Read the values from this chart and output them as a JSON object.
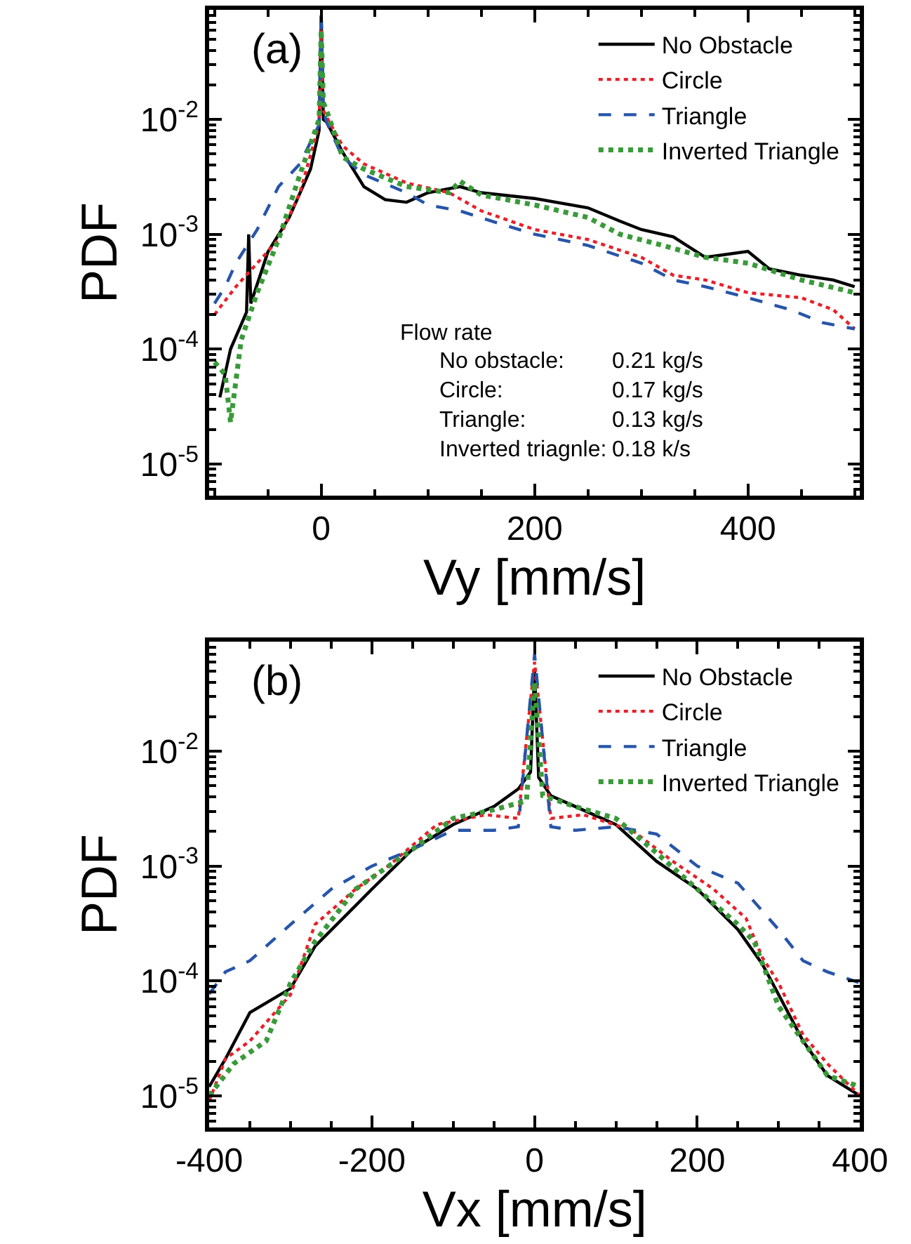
{
  "chart_data": [
    {
      "type": "line",
      "xlabel": "Vy [mm/s]",
      "ylabel": "PDF",
      "log": "y",
      "legend": "top right",
      "xlim": [
        -105,
        505
      ],
      "xticks": [
        0,
        200,
        400
      ],
      "ylim": [
        5.3e-06,
        0.09
      ],
      "yticks": [
        {
          "value": 0.01,
          "label": "10$^{-2}$"
        },
        {
          "value": 0.001,
          "label": "10$^{-3}$"
        },
        {
          "value": 0.0001,
          "label": "10$^{-4}$"
        },
        {
          "value": 1e-05,
          "label": "10$^{-5}$"
        }
      ],
      "annotations": [
        "(a)",
        "Flow rate",
        "No obstacle:",
        "0.21 kg/s",
        "Circle:",
        "0.17 kg/s",
        "Triangle:",
        "0.13 kg/s",
        "Inverted triagnle:",
        "0.18 k/s"
      ],
      "series": [
        {
          "name": "No Obstacle",
          "color": "#000000",
          "line_style": "solid",
          "x": [
            -95,
            -85,
            -70,
            -68,
            -66,
            -50,
            -30,
            -10,
            -2,
            0,
            2,
            5,
            20,
            40,
            60,
            80,
            100,
            130,
            150,
            200,
            250,
            280,
            300,
            330,
            360,
            400,
            420,
            450,
            480,
            500
          ],
          "values": [
            3.8e-05,
            0.0001,
            0.00021,
            0.001,
            0.00025,
            0.0007,
            0.0014,
            0.0037,
            0.008,
            0.08,
            0.01,
            0.0095,
            0.0052,
            0.0026,
            0.002,
            0.0019,
            0.0023,
            0.0026,
            0.0023,
            0.00205,
            0.0017,
            0.0013,
            0.0011,
            0.00095,
            0.00063,
            0.00071,
            0.0005,
            0.00044,
            0.0004,
            0.00035
          ]
        },
        {
          "name": "Circle",
          "color": "#e8202a",
          "line_style": "dotted",
          "x": [
            -100,
            -80,
            -60,
            -40,
            -20,
            -2,
            0,
            2,
            5,
            20,
            40,
            80,
            120,
            150,
            200,
            250,
            300,
            330,
            360,
            400,
            450,
            480,
            500
          ],
          "values": [
            0.0002,
            0.00035,
            0.00056,
            0.0009,
            0.0023,
            0.009,
            0.06,
            0.012,
            0.0105,
            0.0059,
            0.0041,
            0.0028,
            0.0023,
            0.0016,
            0.0011,
            0.0009,
            0.00063,
            0.00044,
            0.0004,
            0.00031,
            0.00028,
            0.00022,
            0.00015
          ]
        },
        {
          "name": "Triangle",
          "color": "#2755a8",
          "line_style": "dashed",
          "x": [
            -100,
            -90,
            -80,
            -60,
            -40,
            -20,
            -2,
            0,
            2,
            5,
            20,
            40,
            80,
            100,
            130,
            160,
            200,
            250,
            300,
            330,
            360,
            400,
            440,
            470,
            500
          ],
          "values": [
            0.00025,
            0.00035,
            0.00056,
            0.0011,
            0.0026,
            0.0041,
            0.009,
            0.09,
            0.012,
            0.0095,
            0.0047,
            0.0033,
            0.0023,
            0.0018,
            0.0016,
            0.0013,
            0.001,
            0.0008,
            0.00056,
            0.0004,
            0.00035,
            0.00028,
            0.00022,
            0.00017,
            0.00015
          ]
        },
        {
          "name": "Inverted Triangle",
          "color": "#3a9a3a",
          "line_style": "dotted",
          "x": [
            -100,
            -90,
            -85,
            -75,
            -60,
            -40,
            -20,
            -2,
            0,
            2,
            5,
            20,
            40,
            80,
            120,
            130,
            150,
            200,
            250,
            280,
            320,
            360,
            400,
            450,
            500
          ],
          "values": [
            7.7e-05,
            6e-05,
            2.3e-05,
            0.00012,
            0.00031,
            0.0009,
            0.0033,
            0.01,
            0.06,
            0.014,
            0.012,
            0.0047,
            0.0037,
            0.0026,
            0.0023,
            0.0029,
            0.0022,
            0.0018,
            0.0014,
            0.001,
            0.0008,
            0.00063,
            0.00056,
            0.0004,
            0.00031
          ]
        }
      ]
    },
    {
      "type": "line",
      "xlabel": "Vx [mm/s]",
      "ylabel": "PDF",
      "log": "y",
      "legend": "top right",
      "xlim": [
        -400,
        400
      ],
      "xticks": [
        -400,
        -200,
        0,
        200,
        400
      ],
      "ylim": [
        5.3e-06,
        0.09
      ],
      "yticks": [
        {
          "value": 0.01,
          "label": "10$^{-2}$"
        },
        {
          "value": 0.001,
          "label": "10$^{-3}$"
        },
        {
          "value": 0.0001,
          "label": "10$^{-4}$"
        },
        {
          "value": 1e-05,
          "label": "10$^{-5}$"
        }
      ],
      "annotations": [
        "(b)"
      ],
      "series": [
        {
          "name": "No Obstacle",
          "color": "#000000",
          "line_style": "solid",
          "x": [
            -400,
            -380,
            -350,
            -300,
            -270,
            -200,
            -150,
            -100,
            -50,
            -20,
            -5,
            0,
            5,
            20,
            50,
            100,
            150,
            200,
            250,
            280,
            300,
            330,
            360,
            400
          ],
          "values": [
            1.2e-05,
            2.1e-05,
            5.3e-05,
            8.6e-05,
            0.0002,
            0.00063,
            0.0014,
            0.0023,
            0.0033,
            0.0047,
            0.0066,
            0.05,
            0.0059,
            0.0041,
            0.0033,
            0.0023,
            0.0011,
            0.00063,
            0.00028,
            0.00014,
            7.6e-05,
            3e-05,
            1.5e-05,
            1e-05
          ]
        },
        {
          "name": "Circle",
          "color": "#e8202a",
          "line_style": "dotted",
          "x": [
            -400,
            -380,
            -350,
            -300,
            -270,
            -220,
            -180,
            -120,
            -60,
            -20,
            0,
            20,
            60,
            120,
            170,
            220,
            260,
            280,
            300,
            330,
            360,
            400
          ],
          "values": [
            9e-06,
            2.1e-05,
            3e-05,
            7.6e-05,
            0.00031,
            0.00063,
            0.001,
            0.0023,
            0.0028,
            0.0026,
            0.06,
            0.0026,
            0.0028,
            0.00205,
            0.0011,
            0.00063,
            0.00035,
            0.00016,
            9.6e-05,
            3.4e-05,
            1.9e-05,
            1e-05
          ]
        },
        {
          "name": "Triangle",
          "color": "#2755a8",
          "line_style": "dashed",
          "x": [
            -400,
            -380,
            -350,
            -300,
            -250,
            -200,
            -150,
            -100,
            -50,
            -20,
            0,
            20,
            50,
            100,
            150,
            200,
            250,
            300,
            330,
            360,
            400
          ],
          "values": [
            7.7e-05,
            0.00012,
            0.00015,
            0.00031,
            0.00063,
            0.001,
            0.0014,
            0.00205,
            0.00205,
            0.0022,
            0.07,
            0.0022,
            0.00205,
            0.0022,
            0.0019,
            0.001,
            0.00071,
            0.00028,
            0.00015,
            0.00012,
            9.6e-05
          ]
        },
        {
          "name": "Inverted Triangle",
          "color": "#3a9a3a",
          "line_style": "dotted",
          "x": [
            -400,
            -370,
            -330,
            -300,
            -270,
            -220,
            -150,
            -100,
            -50,
            -10,
            0,
            10,
            50,
            100,
            150,
            200,
            250,
            270,
            300,
            330,
            360,
            400
          ],
          "values": [
            1e-05,
            1.9e-05,
            3e-05,
            9.6e-05,
            0.00022,
            0.00063,
            0.0014,
            0.0026,
            0.0031,
            0.0037,
            0.04,
            0.0041,
            0.0033,
            0.0026,
            0.0013,
            0.00063,
            0.00031,
            0.00022,
            6e-05,
            3e-05,
            1.5e-05,
            1.2e-05
          ]
        }
      ]
    }
  ]
}
